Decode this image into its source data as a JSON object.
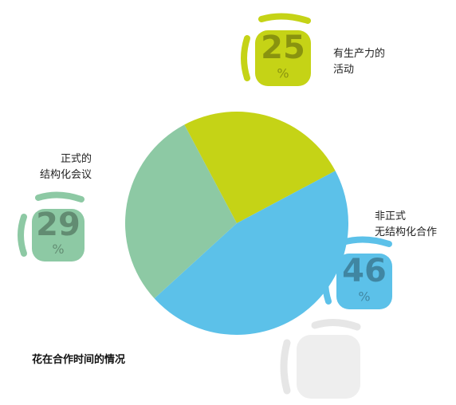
{
  "chart_data": {
    "type": "pie",
    "title": "花在合作时间的情况",
    "categories": [
      "有生产力的\n活动",
      "非正式\n无结构化合作",
      "正式的\n结构化会议"
    ],
    "values": [
      25,
      46,
      29
    ],
    "colors": [
      "#c5d316",
      "#5cc1e9",
      "#8dc9a4"
    ],
    "unit": "%"
  }
}
